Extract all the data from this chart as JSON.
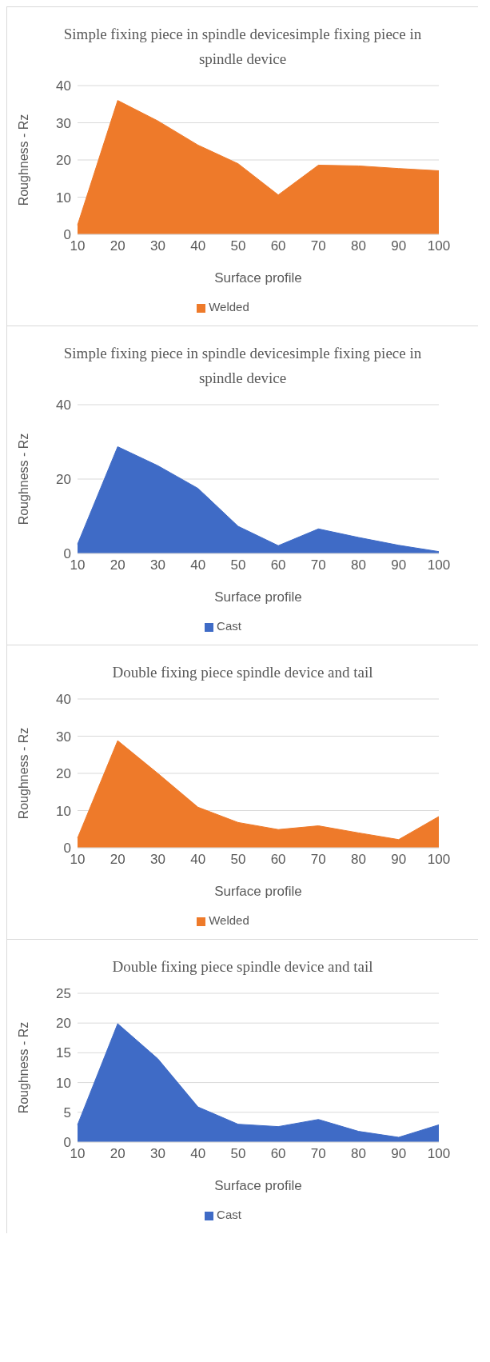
{
  "chart_data": [
    {
      "type": "area",
      "title": "Simple fixing piece in spindle devicesimple fixing piece in spindle device",
      "xlabel": "Surface profile",
      "ylabel": "Roughness - Rz",
      "categories": [
        "10",
        "20",
        "30",
        "40",
        "50",
        "60",
        "70",
        "80",
        "90",
        "100"
      ],
      "ylim": [
        0,
        40
      ],
      "yticks": [
        0,
        10,
        20,
        30,
        40
      ],
      "grid": "y",
      "legend": "bottom",
      "series": [
        {
          "name": "Welded",
          "color": "#ee7a2a",
          "values": [
            2.5,
            36,
            30.5,
            24,
            19,
            10.6,
            18.6,
            18.4,
            17.7,
            17.1
          ]
        }
      ]
    },
    {
      "type": "area",
      "title": "Simple fixing piece in spindle devicesimple fixing piece in spindle device",
      "xlabel": "Surface profile",
      "ylabel": "Roughness - Rz",
      "categories": [
        "10",
        "20",
        "30",
        "40",
        "50",
        "60",
        "70",
        "80",
        "90",
        "100"
      ],
      "ylim": [
        0,
        40
      ],
      "yticks": [
        0,
        20,
        40
      ],
      "grid": "y",
      "legend": "bottom",
      "series": [
        {
          "name": "Cast",
          "color": "#3f6bc6",
          "values": [
            2.5,
            28.7,
            23.6,
            17.5,
            7.3,
            2.1,
            6.6,
            4.3,
            2.2,
            0.5
          ]
        }
      ]
    },
    {
      "type": "area",
      "title": "Double fixing piece spindle device and tail",
      "xlabel": "Surface profile",
      "ylabel": "Roughness - Rz",
      "categories": [
        "10",
        "20",
        "30",
        "40",
        "50",
        "60",
        "70",
        "80",
        "90",
        "100"
      ],
      "ylim": [
        0,
        40
      ],
      "yticks": [
        0,
        10,
        20,
        30,
        40
      ],
      "grid": "y",
      "legend": "bottom",
      "series": [
        {
          "name": "Welded",
          "color": "#ee7a2a",
          "values": [
            2.6,
            28.8,
            20,
            10.9,
            6.8,
            4.9,
            5.9,
            4,
            2.2,
            8.4
          ]
        }
      ]
    },
    {
      "type": "area",
      "title": "Double fixing piece spindle device and tail",
      "xlabel": "Surface profile",
      "ylabel": "Roughness - Rz",
      "categories": [
        "10",
        "20",
        "30",
        "40",
        "50",
        "60",
        "70",
        "80",
        "90",
        "100"
      ],
      "ylim": [
        0,
        25
      ],
      "yticks": [
        0,
        5,
        10,
        15,
        20,
        25
      ],
      "grid": "y",
      "legend": "bottom",
      "series": [
        {
          "name": "Cast",
          "color": "#3f6bc6",
          "values": [
            2.9,
            19.9,
            14,
            5.9,
            3,
            2.6,
            3.8,
            1.8,
            0.8,
            2.9
          ]
        }
      ]
    }
  ]
}
